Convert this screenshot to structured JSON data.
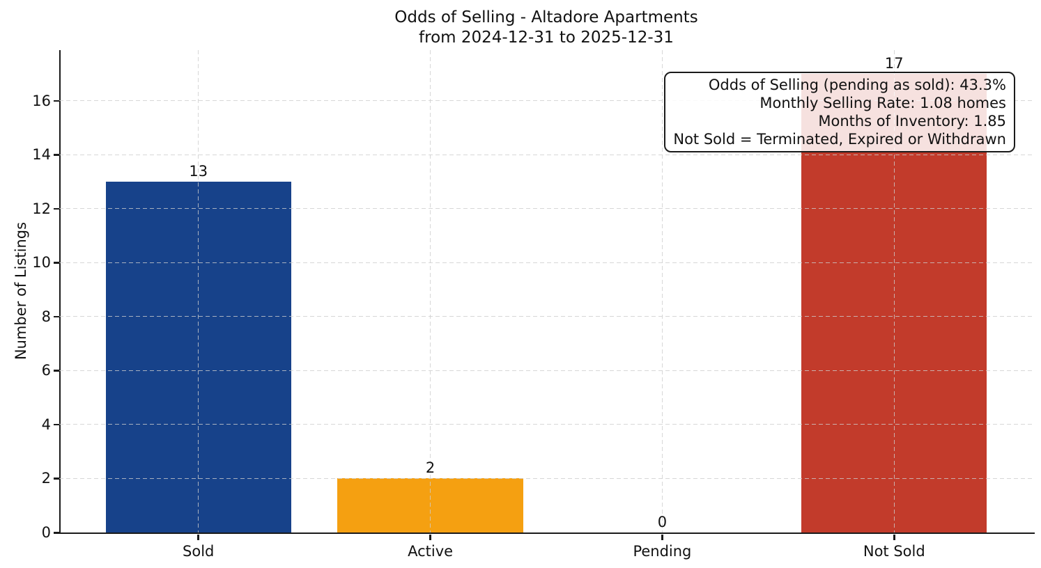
{
  "chart_data": {
    "type": "bar",
    "title": "Odds of Selling - Altadore Apartments",
    "subtitle": "from 2024-12-31 to 2025-12-31",
    "categories": [
      "Sold",
      "Active",
      "Pending",
      "Not Sold"
    ],
    "values": [
      13,
      2,
      0,
      17
    ],
    "bar_colors": [
      "#17428A",
      "#F5A011",
      null,
      "#C23B2B"
    ],
    "ylabel": "Number of Listings",
    "xlabel": "",
    "yticks": [
      0,
      2,
      4,
      6,
      8,
      10,
      12,
      14,
      16
    ],
    "ylim": [
      0,
      17.87
    ],
    "grid": {
      "visible": true,
      "style": "dashed",
      "axes": "both",
      "color": "#cdcdcd",
      "grid_above_bars": true
    },
    "spines": {
      "left": true,
      "bottom": true,
      "top": false,
      "right": false,
      "color": "#1a1a1a"
    },
    "annotation": {
      "lines": [
        "Odds of Selling (pending as sold): 43.3%",
        "Monthly Selling Rate: 1.08 homes",
        "Months of Inventory: 1.85",
        "Not Sold = Terminated, Expired or Withdrawn"
      ],
      "text_align": "right",
      "position": "top-right",
      "background": "rgba(255,255,255,0.85)",
      "border_color": "#1a1a1a"
    }
  }
}
